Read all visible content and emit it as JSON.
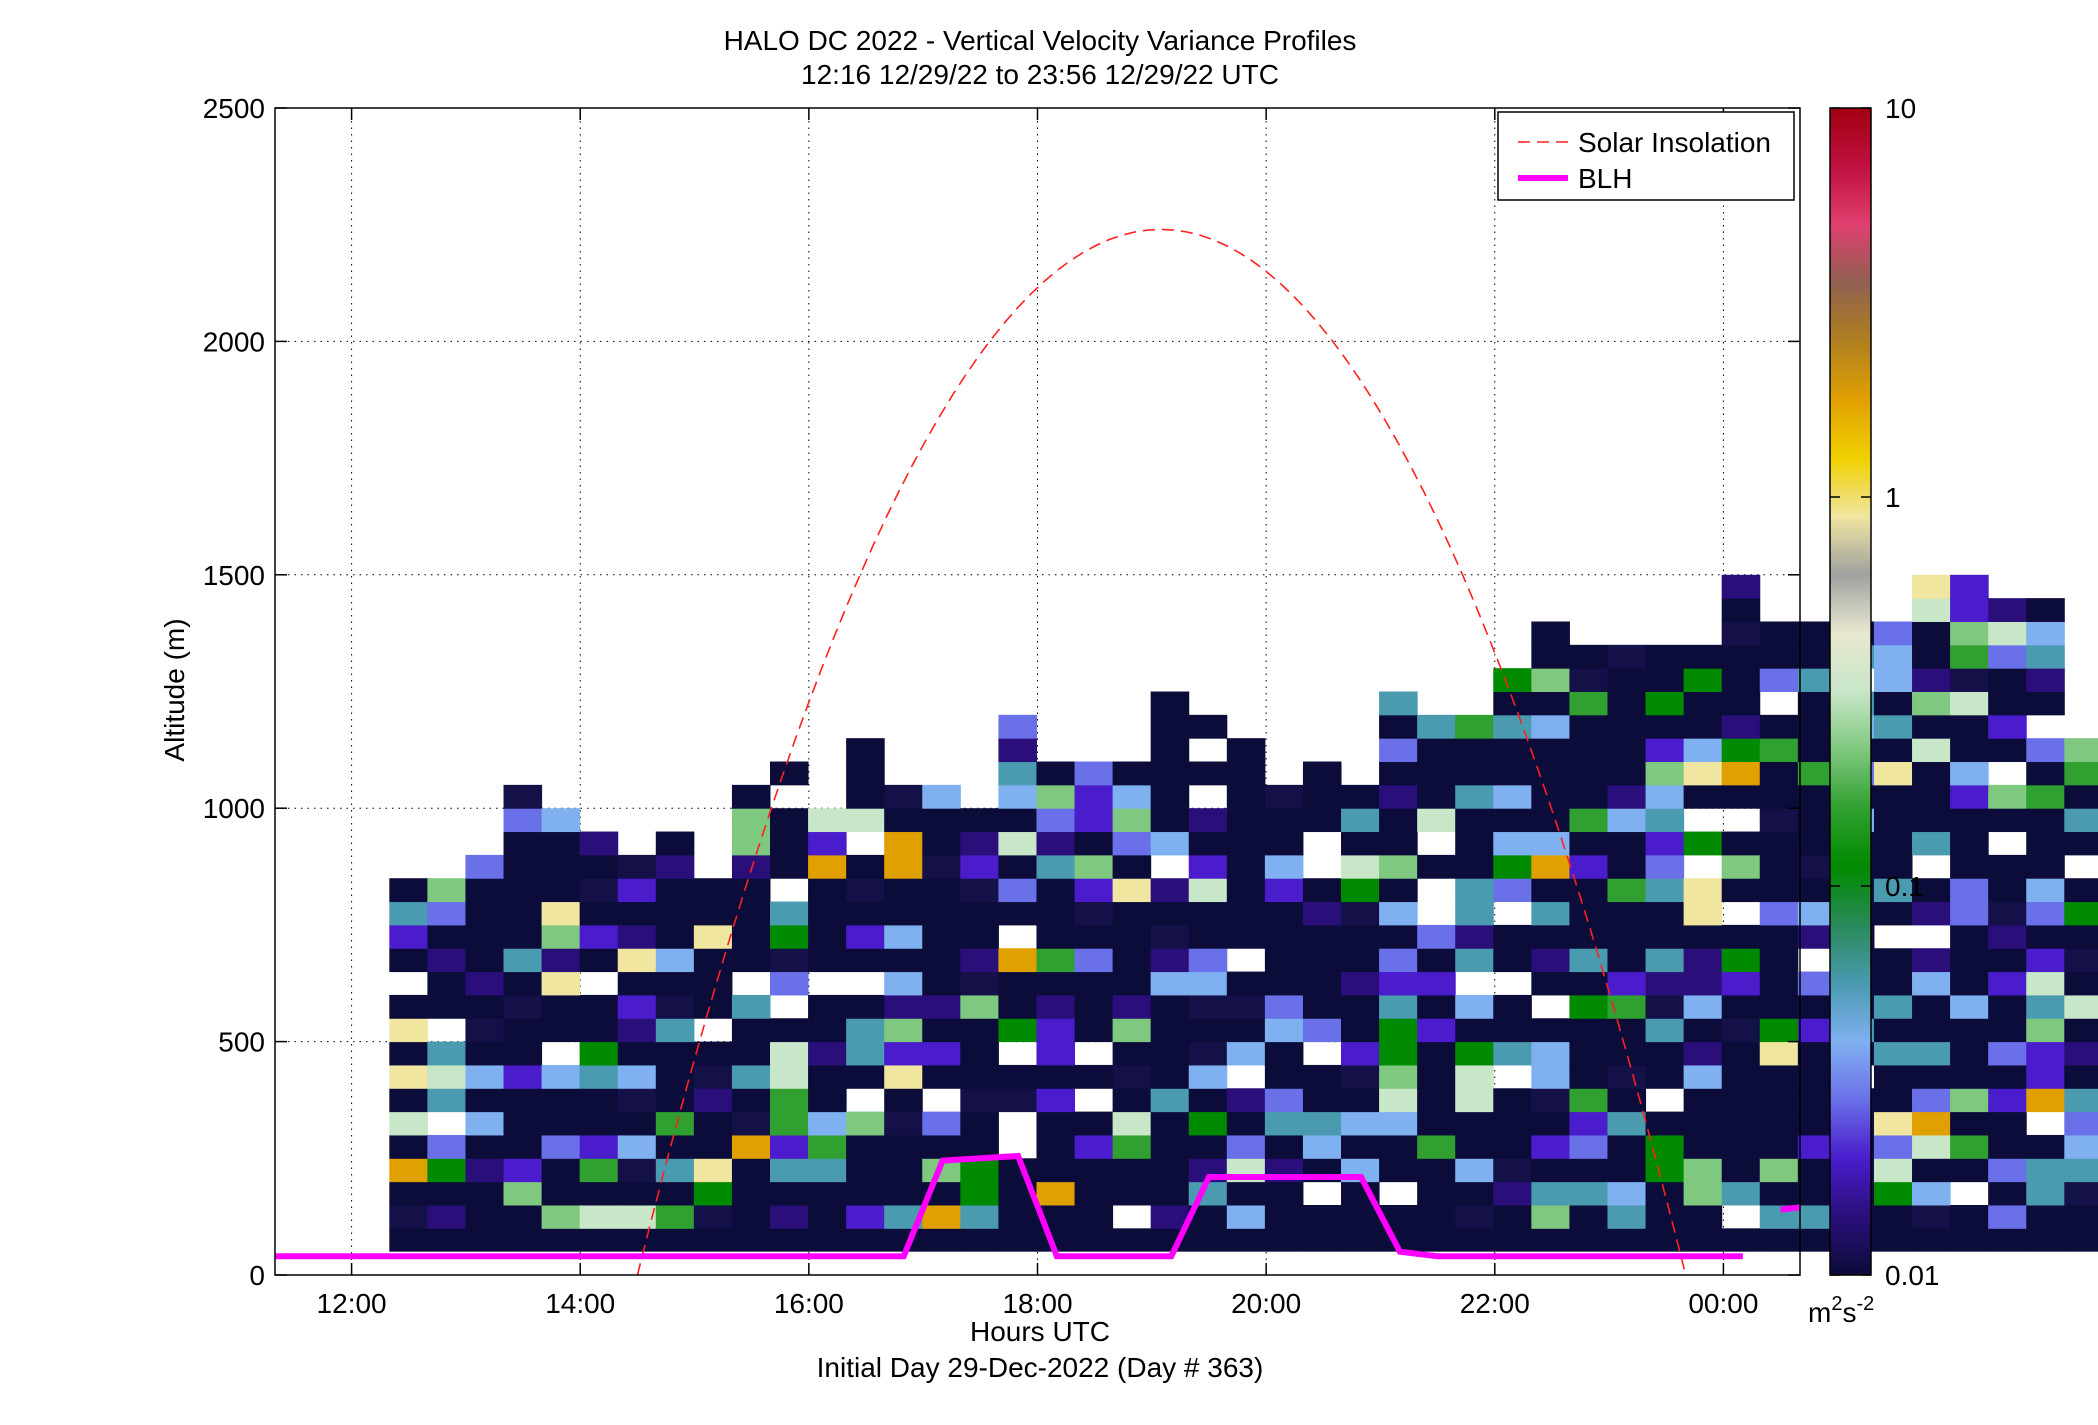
{
  "figure": {
    "title_line1": "HALO DC 2022 - Vertical Velocity Variance Profiles",
    "title_line2": "12:16 12/29/22 to 23:56 12/29/22  UTC",
    "xlabel": "Hours UTC",
    "xlabel2": "Initial Day 29-Dec-2022 (Day # 363)",
    "ylabel": "Altitude (m)"
  },
  "chart_data": {
    "type": "heatmap",
    "x_unit": "hours UTC",
    "xlim": [
      11.33,
      24.67
    ],
    "ylim": [
      0,
      2500
    ],
    "grid": true,
    "x_ticks": [
      12,
      14,
      16,
      18,
      20,
      22,
      24
    ],
    "x_tick_labels": [
      "12:00",
      "14:00",
      "16:00",
      "18:00",
      "20:00",
      "22:00",
      "00:00"
    ],
    "y_ticks": [
      0,
      500,
      1000,
      1500,
      2000,
      2500
    ],
    "y_tick_labels": [
      "0",
      "500",
      "1000",
      "1500",
      "2000",
      "2500"
    ],
    "colorbar": {
      "scale": "log",
      "min": 0.01,
      "max": 10,
      "ticks": [
        0.01,
        0.1,
        1,
        10
      ],
      "tick_labels": [
        "0.01",
        "0.1",
        "1",
        "10"
      ],
      "unit_base": "m",
      "unit_exp1": "2",
      "unit_mid": "s",
      "unit_exp2": "-2",
      "colors": [
        "#0c0c3a",
        "#2a0f7a",
        "#4a1ccc",
        "#6a70e8",
        "#7fb0f0",
        "#4a9ab0",
        "#2a8a5a",
        "#008a00",
        "#30a030",
        "#7fc87f",
        "#c8e6c8",
        "#e8e8d0",
        "#a0a0a0",
        "#f0e6a0",
        "#f0d000",
        "#e0a000",
        "#b08020",
        "#906050",
        "#e04070",
        "#c01040",
        "#a00010"
      ]
    },
    "legend": {
      "position": "top-right",
      "entries": [
        {
          "label": "Solar Insolation",
          "color": "#ff2020",
          "style": "dashed"
        },
        {
          "label": "BLH",
          "color": "#ff00ff",
          "style": "solid"
        }
      ]
    },
    "heatmap": {
      "x_start": 12.33,
      "dx": 0.333,
      "y_start": 100,
      "dy": 50,
      "col_top_alt": [
        850,
        850,
        900,
        1050,
        1000,
        950,
        900,
        950,
        850,
        1050,
        1100,
        1000,
        1150,
        1050,
        1050,
        1000,
        1200,
        1150,
        1150,
        1100,
        1250,
        1200,
        1150,
        1050,
        1100,
        1050,
        1250,
        1200,
        1200,
        1300,
        1400,
        1350,
        1400,
        1350,
        1350,
        1500,
        1400,
        1400,
        1400,
        1400,
        1500,
        1500,
        1450,
        1450,
        1150,
        1150,
        1150,
        1100
      ]
    },
    "blh": {
      "x": [
        11.33,
        16.83,
        17.17,
        17.83,
        18.17,
        19.17,
        19.5,
        20.83,
        21.17,
        21.5,
        24.17
      ],
      "y": [
        40,
        40,
        245,
        255,
        40,
        40,
        210,
        210,
        50,
        40,
        40
      ]
    },
    "blh_tail": {
      "x": [
        24.5,
        24.67
      ],
      "y": [
        140,
        145
      ]
    },
    "solar": {
      "x_start": 14.5,
      "x_peak": 19.08,
      "x_end": 23.67,
      "y_peak": 2240
    }
  }
}
